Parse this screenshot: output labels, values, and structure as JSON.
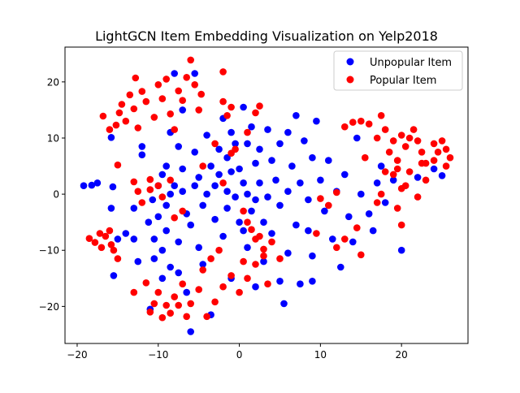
{
  "chart_data": {
    "type": "scatter",
    "title": "LightGCN Item Embedding Visualization on Yelp2018",
    "xlabel": "",
    "ylabel": "",
    "xlim": [
      -21.5,
      28.2
    ],
    "ylim": [
      -26.6,
      26.2
    ],
    "xticks": [
      -20,
      -10,
      0,
      10,
      20
    ],
    "yticks": [
      -20,
      -10,
      0,
      10,
      20
    ],
    "grid": false,
    "legend_position": "top-right",
    "series": [
      {
        "name": "Unpopular Item",
        "color": "#0000ff",
        "points": [
          [
            -19.2,
            1.5
          ],
          [
            -18.2,
            1.6
          ],
          [
            -17.5,
            2.0
          ],
          [
            -15.8,
            10.1
          ],
          [
            -15.6,
            1.3
          ],
          [
            -15.8,
            -2.5
          ],
          [
            -15.0,
            -8.0
          ],
          [
            -15.5,
            -14.5
          ],
          [
            -14.0,
            -7.0
          ],
          [
            -13.0,
            -2.5
          ],
          [
            -12.5,
            -12.0
          ],
          [
            -13.0,
            -8.0
          ],
          [
            -12.0,
            7.0
          ],
          [
            -12.0,
            8.5
          ],
          [
            -11.2,
            -5.0
          ],
          [
            -10.7,
            -1.0
          ],
          [
            -10.5,
            -8.0
          ],
          [
            -10.5,
            -11.5
          ],
          [
            -11.0,
            -20.5
          ],
          [
            -10.0,
            1.5
          ],
          [
            -10.0,
            -4.0
          ],
          [
            -9.5,
            3.5
          ],
          [
            -9.5,
            -10.0
          ],
          [
            -9.0,
            5.0
          ],
          [
            -9.0,
            -2.0
          ],
          [
            -9.0,
            -6.5
          ],
          [
            -9.5,
            -15.0
          ],
          [
            -8.5,
            11.0
          ],
          [
            -8.5,
            0.0
          ],
          [
            -8.5,
            -13.0
          ],
          [
            -8.0,
            21.5
          ],
          [
            -8.0,
            1.5
          ],
          [
            -7.5,
            8.5
          ],
          [
            -7.5,
            -8.5
          ],
          [
            -7.5,
            -14.0
          ],
          [
            -7.0,
            15.0
          ],
          [
            -7.0,
            4.5
          ],
          [
            -7.0,
            0.5
          ],
          [
            -6.5,
            -3.5
          ],
          [
            -6.5,
            -17.5
          ],
          [
            -6.0,
            -5.5
          ],
          [
            -6.0,
            -24.5
          ],
          [
            -5.5,
            21.5
          ],
          [
            -5.5,
            7.5
          ],
          [
            -5.5,
            1.5
          ],
          [
            -5.0,
            3.0
          ],
          [
            -5.0,
            -9.5
          ],
          [
            -4.5,
            -2.0
          ],
          [
            -4.5,
            -12.5
          ],
          [
            -4.0,
            10.5
          ],
          [
            -4.0,
            0.0
          ],
          [
            -3.5,
            5.0
          ],
          [
            -3.5,
            -21.5
          ],
          [
            -3.0,
            1.5
          ],
          [
            -3.0,
            -4.5
          ],
          [
            -2.5,
            8.0
          ],
          [
            -2.5,
            3.5
          ],
          [
            -2.0,
            13.5
          ],
          [
            -2.0,
            -7.5
          ],
          [
            -1.5,
            6.5
          ],
          [
            -1.5,
            0.5
          ],
          [
            -1.5,
            -2.5
          ],
          [
            -1.0,
            11.0
          ],
          [
            -1.0,
            4.0
          ],
          [
            -1.0,
            -15.0
          ],
          [
            -0.5,
            9.0
          ],
          [
            -0.5,
            -0.5
          ],
          [
            0.0,
            4.5
          ],
          [
            0.0,
            -5.0
          ],
          [
            0.5,
            15.5
          ],
          [
            0.5,
            2.0
          ],
          [
            0.5,
            -6.5
          ],
          [
            1.0,
            9.0
          ],
          [
            1.0,
            0.0
          ],
          [
            1.0,
            -9.5
          ],
          [
            1.5,
            12.0
          ],
          [
            1.5,
            -3.0
          ],
          [
            2.0,
            5.5
          ],
          [
            2.0,
            -1.0
          ],
          [
            2.0,
            -16.5
          ],
          [
            2.5,
            8.0
          ],
          [
            2.5,
            2.0
          ],
          [
            3.0,
            -5.0
          ],
          [
            3.0,
            -12.0
          ],
          [
            3.5,
            11.5
          ],
          [
            3.5,
            -0.5
          ],
          [
            4.0,
            6.0
          ],
          [
            4.0,
            -7.0
          ],
          [
            4.5,
            2.5
          ],
          [
            5.0,
            9.0
          ],
          [
            5.0,
            -2.0
          ],
          [
            5.0,
            -15.5
          ],
          [
            5.5,
            -19.5
          ],
          [
            6.0,
            11.0
          ],
          [
            6.0,
            0.5
          ],
          [
            6.0,
            -10.5
          ],
          [
            6.5,
            5.0
          ],
          [
            7.0,
            14.0
          ],
          [
            7.0,
            -5.5
          ],
          [
            7.5,
            2.0
          ],
          [
            7.5,
            -16.0
          ],
          [
            8.0,
            9.5
          ],
          [
            8.5,
            -1.0
          ],
          [
            8.5,
            -6.5
          ],
          [
            9.0,
            6.5
          ],
          [
            9.0,
            -11.0
          ],
          [
            9.0,
            -15.5
          ],
          [
            9.5,
            13.0
          ],
          [
            10.0,
            2.5
          ],
          [
            10.5,
            -3.0
          ],
          [
            11.0,
            6.0
          ],
          [
            11.5,
            -8.0
          ],
          [
            12.0,
            0.5
          ],
          [
            12.5,
            -13.0
          ],
          [
            13.0,
            3.5
          ],
          [
            13.5,
            -4.0
          ],
          [
            14.0,
            -8.5
          ],
          [
            14.5,
            10.0
          ],
          [
            15.0,
            0.0
          ],
          [
            16.0,
            -3.5
          ],
          [
            16.5,
            -6.5
          ],
          [
            17.0,
            2.0
          ],
          [
            17.5,
            5.0
          ],
          [
            18.0,
            -1.5
          ],
          [
            19.0,
            2.5
          ],
          [
            20.0,
            -10.0
          ],
          [
            22.0,
            3.0
          ],
          [
            24.0,
            4.5
          ],
          [
            25.0,
            3.3
          ]
        ]
      },
      {
        "name": "Popular Item",
        "color": "#ff0000",
        "points": [
          [
            -15.0,
            5.2
          ],
          [
            -18.5,
            -7.9
          ],
          [
            -17.8,
            -8.6
          ],
          [
            -17.2,
            -7.0
          ],
          [
            -17.0,
            -9.5
          ],
          [
            -16.5,
            -7.5
          ],
          [
            -16.0,
            -6.5
          ],
          [
            -15.8,
            -9.0
          ],
          [
            -15.5,
            -10.0
          ],
          [
            -15.0,
            -11.5
          ],
          [
            -16.8,
            13.9
          ],
          [
            -16.0,
            11.5
          ],
          [
            -15.2,
            12.3
          ],
          [
            -14.8,
            14.5
          ],
          [
            -14.5,
            16.0
          ],
          [
            -14.0,
            13.0
          ],
          [
            -13.5,
            17.7
          ],
          [
            -13.0,
            15.2
          ],
          [
            -12.8,
            20.7
          ],
          [
            -12.5,
            11.8
          ],
          [
            -12.0,
            18.3
          ],
          [
            -11.5,
            16.5
          ],
          [
            -11.0,
            2.6
          ],
          [
            -10.5,
            13.7
          ],
          [
            -10.0,
            19.5
          ],
          [
            -9.5,
            17.0
          ],
          [
            -9.0,
            20.5
          ],
          [
            -8.5,
            14.3
          ],
          [
            -8.0,
            11.5
          ],
          [
            -7.5,
            18.4
          ],
          [
            -7.0,
            16.7
          ],
          [
            -6.5,
            20.8
          ],
          [
            -6.0,
            23.9
          ],
          [
            -5.5,
            19.5
          ],
          [
            -5.0,
            15.0
          ],
          [
            -4.7,
            17.8
          ],
          [
            -2.0,
            21.8
          ],
          [
            -2.0,
            16.5
          ],
          [
            -1.5,
            14.0
          ],
          [
            -1.0,
            15.5
          ],
          [
            -0.5,
            8.0
          ],
          [
            1.0,
            11.0
          ],
          [
            2.0,
            14.5
          ],
          [
            2.5,
            15.7
          ],
          [
            -13.0,
            2.2
          ],
          [
            -12.5,
            0.5
          ],
          [
            -12.0,
            -1.5
          ],
          [
            -11.0,
            0.8
          ],
          [
            -10.0,
            1.5
          ],
          [
            -9.5,
            -0.5
          ],
          [
            -8.5,
            2.5
          ],
          [
            -8.0,
            -4.2
          ],
          [
            -7.0,
            -3.0
          ],
          [
            -4.5,
            5.0
          ],
          [
            -3.0,
            9.0
          ],
          [
            -2.0,
            2.0
          ],
          [
            -1.0,
            7.3
          ],
          [
            0.5,
            -3.0
          ],
          [
            1.0,
            -5.0
          ],
          [
            1.5,
            -6.3
          ],
          [
            2.0,
            -8.0
          ],
          [
            3.0,
            -9.8
          ],
          [
            -13.0,
            -17.5
          ],
          [
            -11.5,
            -15.8
          ],
          [
            -11.0,
            -21.0
          ],
          [
            -10.5,
            -19.5
          ],
          [
            -10.0,
            -17.5
          ],
          [
            -9.5,
            -22.0
          ],
          [
            -9.0,
            -19.8
          ],
          [
            -8.5,
            -21.2
          ],
          [
            -8.0,
            -18.3
          ],
          [
            -7.5,
            -19.8
          ],
          [
            -7.0,
            -16.0
          ],
          [
            -6.5,
            -21.8
          ],
          [
            -6.0,
            -19.5
          ],
          [
            -5.0,
            -17.0
          ],
          [
            -4.0,
            -21.8
          ],
          [
            -3.0,
            -19.2
          ],
          [
            -2.0,
            -16.5
          ],
          [
            -1.0,
            -14.5
          ],
          [
            0.0,
            -17.5
          ],
          [
            1.0,
            -15.0
          ],
          [
            2.0,
            -12.5
          ],
          [
            3.0,
            -11.0
          ],
          [
            4.0,
            -8.5
          ],
          [
            -4.5,
            -13.5
          ],
          [
            -3.5,
            -11.5
          ],
          [
            -2.5,
            -10.0
          ],
          [
            0.5,
            -12.0
          ],
          [
            2.5,
            -7.5
          ],
          [
            3.5,
            -16.0
          ],
          [
            5.0,
            -11.5
          ],
          [
            9.5,
            -7.0
          ],
          [
            10.0,
            -0.8
          ],
          [
            11.0,
            -2.0
          ],
          [
            12.0,
            -9.5
          ],
          [
            13.0,
            -8.0
          ],
          [
            14.5,
            -6.0
          ],
          [
            15.0,
            -10.8
          ],
          [
            12.0,
            0.3
          ],
          [
            13.0,
            12.0
          ],
          [
            14.0,
            12.8
          ],
          [
            15.0,
            13.0
          ],
          [
            16.0,
            12.5
          ],
          [
            15.5,
            6.5
          ],
          [
            17.0,
            10.0
          ],
          [
            17.5,
            14.0
          ],
          [
            18.0,
            11.5
          ],
          [
            18.5,
            7.5
          ],
          [
            19.0,
            9.5
          ],
          [
            19.5,
            6.0
          ],
          [
            20.0,
            10.5
          ],
          [
            20.5,
            8.5
          ],
          [
            21.0,
            10.0
          ],
          [
            21.5,
            11.5
          ],
          [
            22.0,
            9.5
          ],
          [
            22.5,
            7.5
          ],
          [
            23.0,
            5.5
          ],
          [
            24.0,
            9.0
          ],
          [
            24.5,
            7.5
          ],
          [
            25.0,
            9.5
          ],
          [
            25.5,
            8.0
          ],
          [
            26.0,
            6.5
          ],
          [
            25.5,
            5.0
          ],
          [
            24.0,
            6.0
          ],
          [
            17.5,
            0.0
          ],
          [
            17.0,
            -1.5
          ],
          [
            18.0,
            4.0
          ],
          [
            19.0,
            3.5
          ],
          [
            19.5,
            -2.5
          ],
          [
            20.0,
            -5.5
          ],
          [
            20.5,
            1.5
          ],
          [
            21.0,
            4.0
          ],
          [
            22.0,
            -0.5
          ],
          [
            22.5,
            5.5
          ],
          [
            23.0,
            2.5
          ],
          [
            19.5,
            4.5
          ],
          [
            20.0,
            1.0
          ]
        ]
      }
    ]
  }
}
